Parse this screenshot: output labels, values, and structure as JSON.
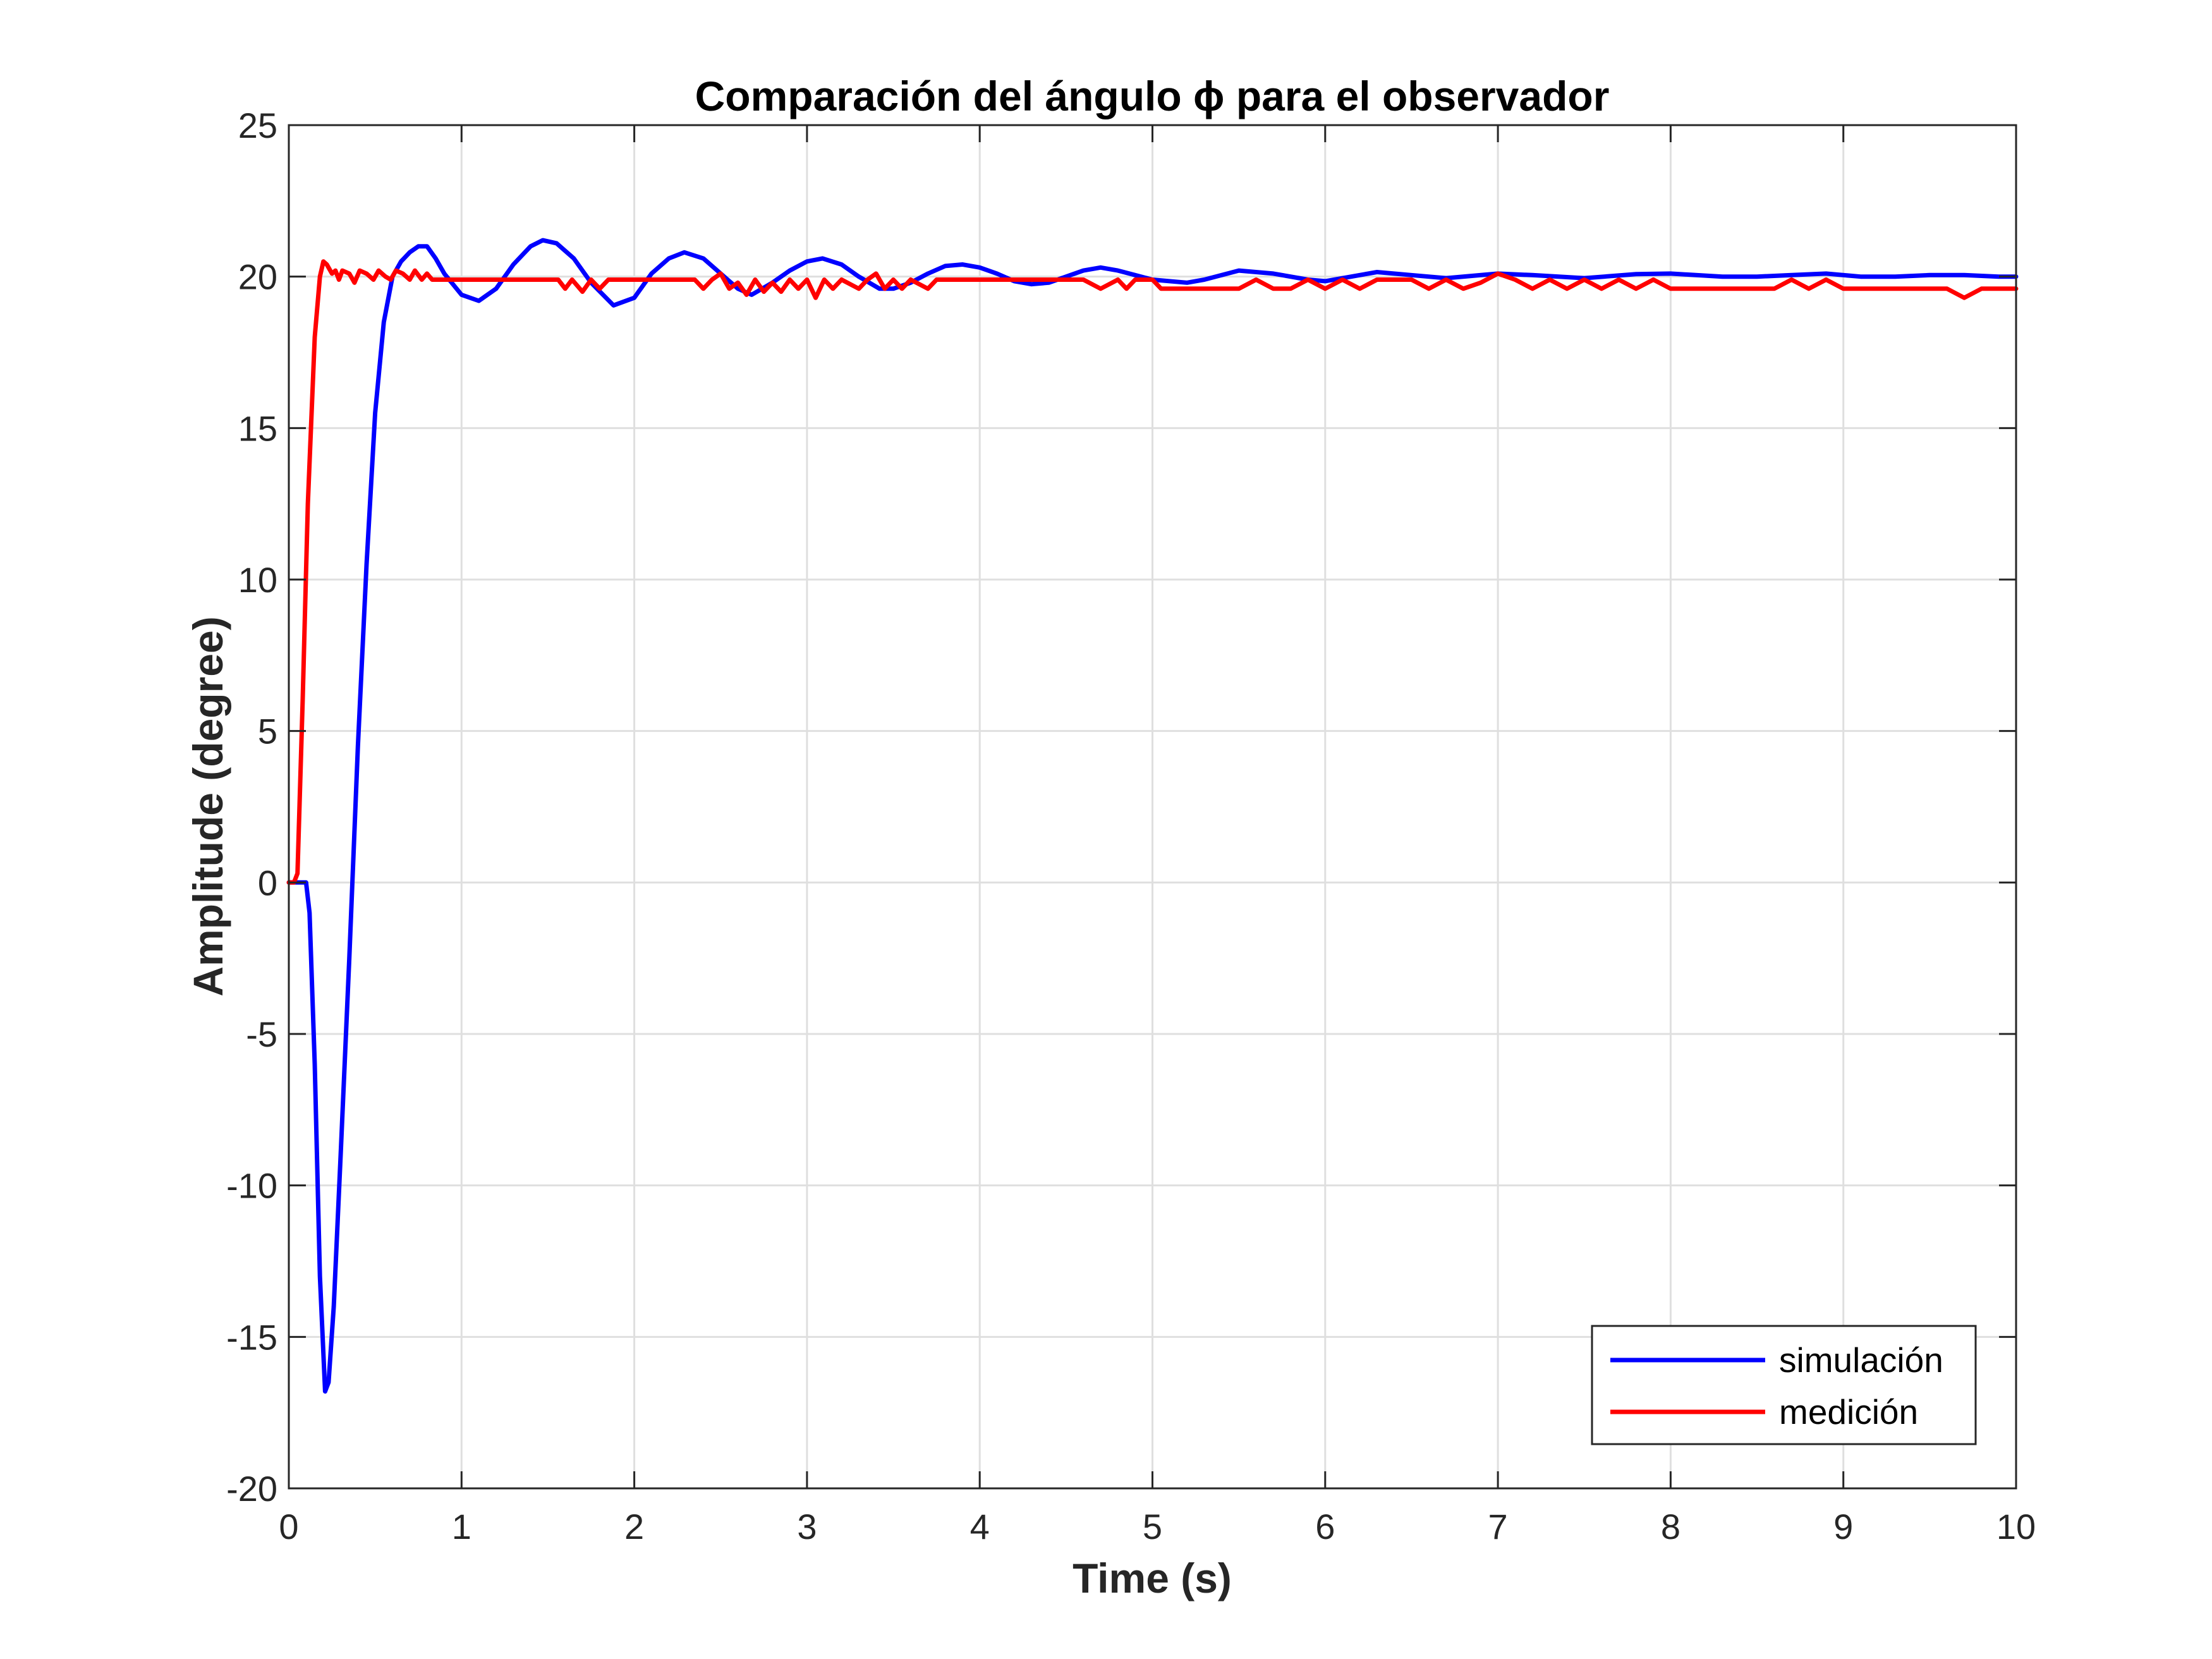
{
  "chart_data": {
    "type": "line",
    "title": "Comparación del ángulo ϕ para el observador",
    "xlabel": "Time (s)",
    "ylabel": "Amplitude (degree)",
    "xlim": [
      0,
      10
    ],
    "ylim": [
      -20,
      25
    ],
    "xticks": [
      0,
      1,
      2,
      3,
      4,
      5,
      6,
      7,
      8,
      9,
      10
    ],
    "xtick_labels": [
      "0",
      "1",
      "2",
      "3",
      "4",
      "5",
      "6",
      "7",
      "8",
      "9",
      "10"
    ],
    "yticks": [
      -20,
      -15,
      -10,
      -5,
      0,
      5,
      10,
      15,
      20,
      25
    ],
    "ytick_labels": [
      "-20",
      "-15",
      "-10",
      "-5",
      "0",
      "5",
      "10",
      "15",
      "20",
      "25"
    ],
    "grid": true,
    "legend_position": "bottom-right",
    "series": [
      {
        "name": "simulación",
        "color": "#0000ff",
        "x": [
          0,
          0.1,
          0.12,
          0.15,
          0.18,
          0.21,
          0.23,
          0.26,
          0.3,
          0.35,
          0.4,
          0.45,
          0.5,
          0.55,
          0.6,
          0.65,
          0.7,
          0.75,
          0.8,
          0.85,
          0.9,
          1.0,
          1.1,
          1.2,
          1.3,
          1.4,
          1.47,
          1.55,
          1.65,
          1.75,
          1.88,
          2.0,
          2.1,
          2.2,
          2.29,
          2.4,
          2.5,
          2.6,
          2.68,
          2.8,
          2.9,
          3.0,
          3.09,
          3.2,
          3.3,
          3.42,
          3.5,
          3.6,
          3.7,
          3.8,
          3.9,
          4.0,
          4.1,
          4.2,
          4.3,
          4.4,
          4.5,
          4.6,
          4.7,
          4.8,
          5.0,
          5.2,
          5.3,
          5.5,
          5.7,
          5.9,
          6.0,
          6.3,
          6.5,
          6.7,
          7.0,
          7.2,
          7.5,
          7.8,
          8.0,
          8.3,
          8.5,
          8.7,
          8.9,
          9.1,
          9.3,
          9.5,
          9.7,
          9.9,
          10.0
        ],
        "y": [
          0,
          0,
          -1,
          -6,
          -13,
          -16.8,
          -16.5,
          -14,
          -9,
          -2.5,
          4.5,
          10.5,
          15.5,
          18.5,
          20,
          20.5,
          20.8,
          21,
          21,
          20.6,
          20.1,
          19.4,
          19.2,
          19.6,
          20.4,
          21,
          21.2,
          21.1,
          20.6,
          19.8,
          19.05,
          19.3,
          20.1,
          20.6,
          20.8,
          20.6,
          20.1,
          19.6,
          19.4,
          19.8,
          20.2,
          20.5,
          20.6,
          20.4,
          20.0,
          19.6,
          19.6,
          19.8,
          20.1,
          20.35,
          20.4,
          20.3,
          20.1,
          19.85,
          19.75,
          19.8,
          20.0,
          20.2,
          20.3,
          20.2,
          19.9,
          19.8,
          19.9,
          20.2,
          20.1,
          19.9,
          19.85,
          20.15,
          20.05,
          19.95,
          20.1,
          20.05,
          19.95,
          20.08,
          20.1,
          20.0,
          20.0,
          20.05,
          20.1,
          20.0,
          20.0,
          20.05,
          20.05,
          20.0,
          20.0
        ]
      },
      {
        "name": "medición",
        "color": "#ff0000",
        "x": [
          0,
          0.03,
          0.05,
          0.08,
          0.11,
          0.15,
          0.18,
          0.2,
          0.22,
          0.25,
          0.27,
          0.29,
          0.31,
          0.35,
          0.38,
          0.41,
          0.45,
          0.49,
          0.52,
          0.56,
          0.59,
          0.62,
          0.66,
          0.7,
          0.73,
          0.77,
          0.8,
          0.83,
          0.88,
          1.0,
          1.2,
          1.4,
          1.56,
          1.6,
          1.64,
          1.7,
          1.75,
          1.8,
          1.85,
          2.0,
          2.2,
          2.35,
          2.4,
          2.45,
          2.5,
          2.55,
          2.6,
          2.65,
          2.7,
          2.75,
          2.8,
          2.85,
          2.9,
          2.95,
          3.0,
          3.05,
          3.1,
          3.15,
          3.2,
          3.3,
          3.35,
          3.4,
          3.45,
          3.5,
          3.55,
          3.6,
          3.7,
          3.75,
          3.8,
          3.9,
          4.0,
          4.1,
          4.2,
          4.3,
          4.4,
          4.5,
          4.6,
          4.7,
          4.8,
          4.85,
          4.9,
          5.0,
          5.05,
          5.1,
          5.3,
          5.5,
          5.6,
          5.7,
          5.8,
          5.9,
          6.0,
          6.1,
          6.2,
          6.3,
          6.4,
          6.5,
          6.6,
          6.7,
          6.8,
          6.9,
          7.0,
          7.1,
          7.2,
          7.3,
          7.4,
          7.5,
          7.6,
          7.7,
          7.8,
          7.9,
          8.0,
          8.2,
          8.4,
          8.6,
          8.7,
          8.8,
          8.9,
          9.0,
          9.2,
          9.4,
          9.6,
          9.7,
          9.8,
          9.9,
          10.0
        ],
        "y": [
          0,
          0,
          0.3,
          6,
          12.5,
          18,
          20,
          20.5,
          20.4,
          20.1,
          20.2,
          19.9,
          20.2,
          20.1,
          19.8,
          20.2,
          20.1,
          19.9,
          20.2,
          20.0,
          19.9,
          20.2,
          20.1,
          19.9,
          20.2,
          19.9,
          20.1,
          19.9,
          19.9,
          19.9,
          19.9,
          19.9,
          19.9,
          19.6,
          19.9,
          19.5,
          19.9,
          19.6,
          19.9,
          19.9,
          19.9,
          19.9,
          19.6,
          19.9,
          20.1,
          19.6,
          19.8,
          19.4,
          19.9,
          19.5,
          19.8,
          19.5,
          19.9,
          19.6,
          19.9,
          19.3,
          19.9,
          19.6,
          19.9,
          19.6,
          19.9,
          20.1,
          19.6,
          19.9,
          19.6,
          19.9,
          19.6,
          19.9,
          19.9,
          19.9,
          19.9,
          19.9,
          19.9,
          19.9,
          19.9,
          19.9,
          19.9,
          19.6,
          19.9,
          19.6,
          19.9,
          19.9,
          19.6,
          19.6,
          19.6,
          19.6,
          19.9,
          19.6,
          19.6,
          19.9,
          19.6,
          19.9,
          19.6,
          19.9,
          19.9,
          19.9,
          19.6,
          19.9,
          19.6,
          19.8,
          20.1,
          19.9,
          19.6,
          19.9,
          19.6,
          19.9,
          19.6,
          19.9,
          19.6,
          19.9,
          19.6,
          19.6,
          19.6,
          19.6,
          19.9,
          19.6,
          19.9,
          19.6,
          19.6,
          19.6,
          19.6,
          19.3,
          19.6,
          19.6,
          19.6
        ]
      }
    ]
  }
}
